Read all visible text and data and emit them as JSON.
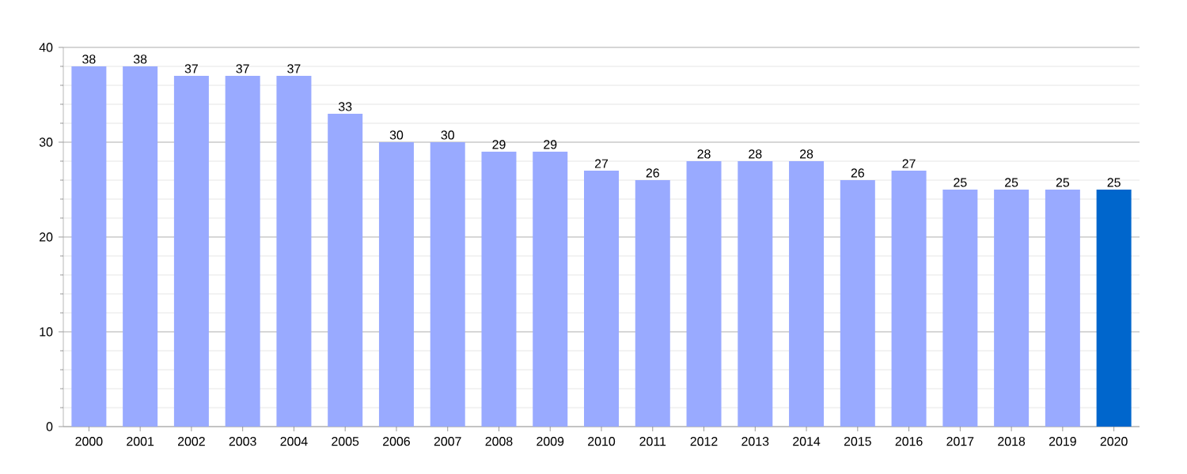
{
  "chart_data": {
    "type": "bar",
    "categories": [
      "2000",
      "2001",
      "2002",
      "2003",
      "2004",
      "2005",
      "2006",
      "2007",
      "2008",
      "2009",
      "2010",
      "2011",
      "2012",
      "2013",
      "2014",
      "2015",
      "2016",
      "2017",
      "2018",
      "2019",
      "2020"
    ],
    "values": [
      38,
      38,
      37,
      37,
      37,
      33,
      30,
      30,
      29,
      29,
      27,
      26,
      28,
      28,
      28,
      26,
      27,
      25,
      25,
      25,
      25
    ],
    "colors": [
      "#99aaff",
      "#99aaff",
      "#99aaff",
      "#99aaff",
      "#99aaff",
      "#99aaff",
      "#99aaff",
      "#99aaff",
      "#99aaff",
      "#99aaff",
      "#99aaff",
      "#99aaff",
      "#99aaff",
      "#99aaff",
      "#99aaff",
      "#99aaff",
      "#99aaff",
      "#99aaff",
      "#99aaff",
      "#99aaff",
      "#0066cc"
    ],
    "ylim": [
      0,
      40
    ],
    "yticks": [
      0,
      {
        "value": 2,
        "label": null
      },
      {
        "value": 4,
        "label": null
      },
      {
        "value": 6,
        "label": null
      },
      {
        "value": 8,
        "label": null
      },
      10,
      {
        "value": 12,
        "label": null
      },
      {
        "value": 14,
        "label": null
      },
      {
        "value": 16,
        "label": null
      },
      {
        "value": 18,
        "label": null
      },
      20,
      {
        "value": 22,
        "label": null
      },
      {
        "value": 24,
        "label": null
      },
      {
        "value": 26,
        "label": null
      },
      {
        "value": 28,
        "label": null
      },
      30,
      {
        "value": 32,
        "label": null
      },
      {
        "value": 34,
        "label": null
      },
      {
        "value": 36,
        "label": null
      },
      {
        "value": 38,
        "label": null
      },
      40
    ],
    "grid": "y",
    "data_labels": true
  }
}
